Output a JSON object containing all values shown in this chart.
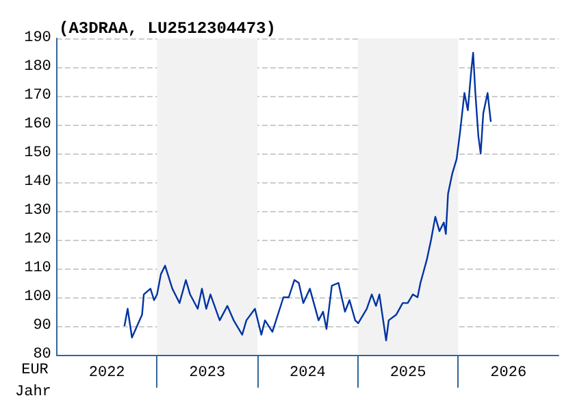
{
  "chart_data": {
    "type": "line",
    "title": "(A3DRAA, LU2512304473)",
    "xlabel": "Jahr",
    "ylabel": "EUR",
    "x": [
      2022.675,
      2022.707,
      2022.75,
      2022.851,
      2022.868,
      2022.934,
      2022.97,
      2023.0,
      2023.038,
      2023.08,
      2023.152,
      2023.224,
      2023.287,
      2023.329,
      2023.405,
      2023.447,
      2023.49,
      2023.532,
      2023.624,
      2023.7,
      2023.763,
      2023.848,
      2023.89,
      2023.975,
      2024.039,
      2024.075,
      2024.149,
      2024.259,
      2024.312,
      2024.368,
      2024.412,
      2024.457,
      2024.522,
      2024.609,
      2024.654,
      2024.688,
      2024.741,
      2024.807,
      2024.872,
      2024.917,
      2024.974,
      2025.004,
      2025.089,
      2025.139,
      2025.181,
      2025.215,
      2025.244,
      2025.282,
      2025.308,
      2025.384,
      2025.447,
      2025.497,
      2025.548,
      2025.595,
      2025.624,
      2025.687,
      2025.73,
      2025.772,
      2025.813,
      2025.857,
      2025.877,
      2025.899,
      2025.941,
      2025.984,
      2026.017,
      2026.062,
      2026.096,
      2026.128,
      2026.149,
      2026.171,
      2026.201,
      2026.224,
      2026.25,
      2026.293,
      2026.325
    ],
    "series": [
      {
        "color": "#0033a0",
        "values": [
          90,
          96,
          86,
          94,
          101,
          103,
          99,
          101,
          108,
          111,
          103,
          98,
          106,
          101,
          96,
          103,
          96,
          101,
          92,
          97,
          92,
          87,
          92,
          96,
          87,
          92,
          88,
          100,
          100,
          106,
          105,
          98,
          103,
          92,
          95,
          89,
          104,
          105,
          95,
          99,
          92,
          91,
          96,
          101,
          97,
          101,
          94,
          85,
          92,
          94,
          98,
          98,
          101,
          100,
          105,
          113,
          120,
          128,
          123,
          126,
          122,
          136,
          143,
          148,
          157,
          171,
          165,
          178,
          185,
          171,
          156,
          150,
          164,
          171,
          161
        ]
      }
    ],
    "xlim": [
      2022,
      2027
    ],
    "xticks": [
      {
        "value": 2022.5,
        "label": "2022"
      },
      {
        "value": 2023.5,
        "label": "2023"
      },
      {
        "value": 2024.5,
        "label": "2024"
      },
      {
        "value": 2025.5,
        "label": "2025"
      },
      {
        "value": 2026.5,
        "label": "2026"
      }
    ],
    "ylim": [
      80,
      190
    ],
    "yticks": [
      80,
      90,
      100,
      110,
      120,
      130,
      140,
      150,
      160,
      170,
      180,
      190
    ],
    "bands": [
      {
        "axis": "x",
        "from": 2023,
        "to": 2024,
        "color": "#f2f2f2"
      },
      {
        "axis": "x",
        "from": 2025,
        "to": 2026,
        "color": "#f2f2f2"
      }
    ],
    "grid": "y",
    "marker": "none",
    "line_style": "solid"
  }
}
